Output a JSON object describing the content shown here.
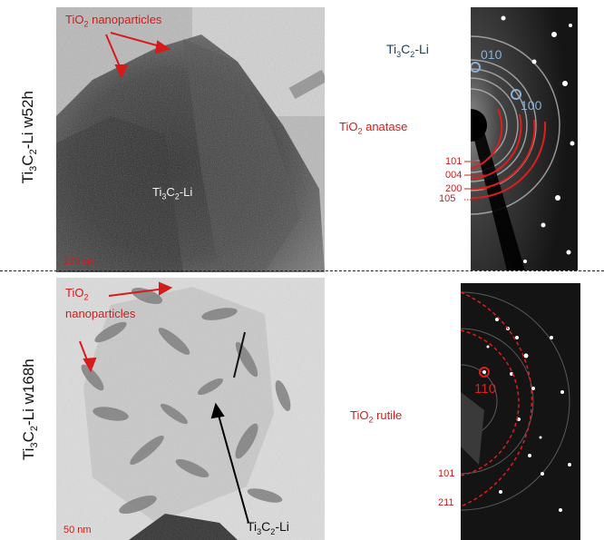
{
  "rows": [
    {
      "sample_label": "Ti3C2-Li w52h",
      "tem": {
        "annotation_particles": "TiO2 nanoparticles",
        "annotation_sheet": "Ti3C2-Li",
        "scale_bar": "100 nm"
      },
      "saed": {
        "sample_tag": "Ti3C2-Li",
        "phase_label": "TiO2 anatase",
        "spot_labels": [
          "010",
          "100"
        ],
        "ring_labels": [
          "101",
          "004",
          "200",
          "105"
        ]
      }
    },
    {
      "sample_label": "Ti3C2-Li w168h",
      "tem": {
        "annotation_particles": "TiO2 nanoparticles",
        "annotation_sheet": "Ti3C2-Li",
        "scale_bar": "50 nm"
      },
      "saed": {
        "phase_label": "TiO2 rutile",
        "spot_labels": [
          "110"
        ],
        "ring_labels": [
          "101",
          "211"
        ]
      }
    }
  ],
  "colors": {
    "annotation_red": "#d51b1b",
    "annotation_blue": "#1f3d66"
  }
}
